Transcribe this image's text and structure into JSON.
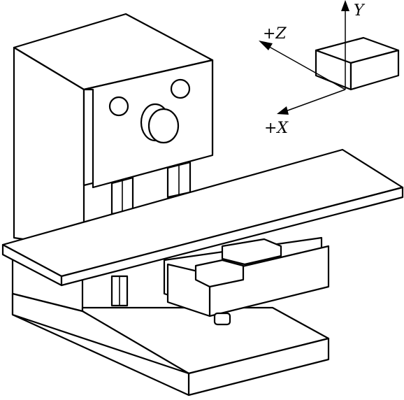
{
  "axes": {
    "y_label": "Y",
    "z_label": "+Z",
    "x_label": "+X"
  }
}
